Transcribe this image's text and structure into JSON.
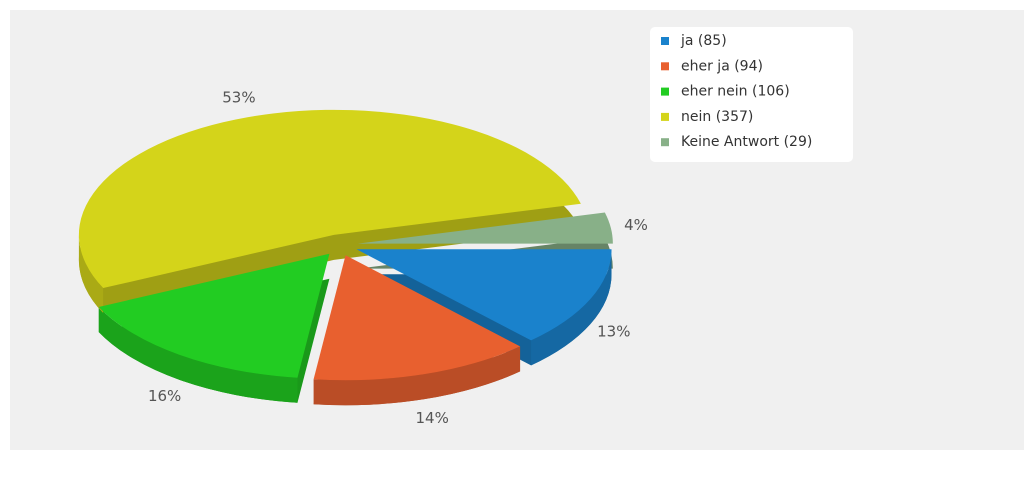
{
  "chart_data": {
    "type": "pie",
    "categories": [
      "ja",
      "eher ja",
      "eher nein",
      "nein",
      "Keine Antwort"
    ],
    "legend": [
      "ja (85)",
      "eher ja (94)",
      "eher nein (106)",
      "nein (357)",
      "Keine Antwort (29)"
    ],
    "values": [
      13,
      14,
      16,
      53,
      4
    ],
    "value_labels": [
      "13%",
      "14%",
      "16%",
      "53%",
      "4%"
    ],
    "colors": [
      "#1a82cc",
      "#e8602f",
      "#22cc22",
      "#d4d41a",
      "#88b088"
    ],
    "legend_position": "upper right"
  }
}
